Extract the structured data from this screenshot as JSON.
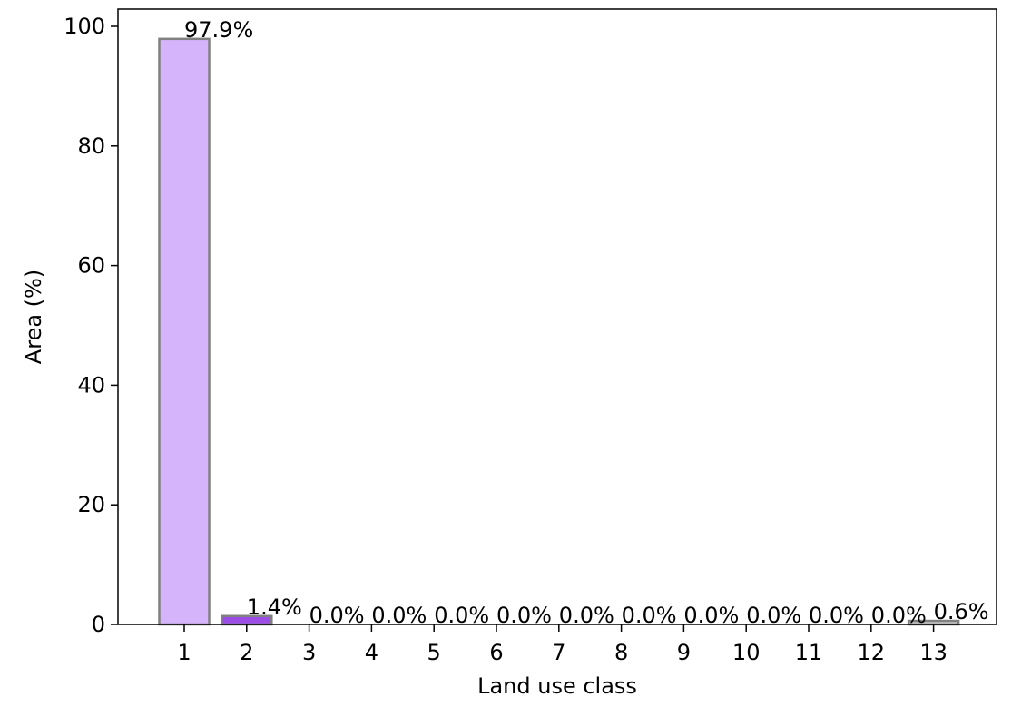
{
  "chart_data": {
    "type": "bar",
    "xlabel": "Land use class",
    "ylabel": "Area (%)",
    "categories": [
      "1",
      "2",
      "3",
      "4",
      "5",
      "6",
      "7",
      "8",
      "9",
      "10",
      "11",
      "12",
      "13"
    ],
    "values": [
      97.9,
      1.4,
      0.0,
      0.0,
      0.0,
      0.0,
      0.0,
      0.0,
      0.0,
      0.0,
      0.0,
      0.0,
      0.6
    ],
    "value_labels": [
      "97.9%",
      "1.4%",
      "0.0%",
      "0.0%",
      "0.0%",
      "0.0%",
      "0.0%",
      "0.0%",
      "0.0%",
      "0.0%",
      "0.0%",
      "0.0%",
      "0.6%"
    ],
    "bar_colors": [
      "#d6b4fc",
      "#9b4de6",
      "#d6b4fc",
      "#d6b4fc",
      "#d6b4fc",
      "#d6b4fc",
      "#d6b4fc",
      "#d6b4fc",
      "#d6b4fc",
      "#d6b4fc",
      "#d6b4fc",
      "#d6b4fc",
      "#c8c8c8"
    ],
    "bar_edge_color": "#808080",
    "ylim": [
      0,
      100
    ],
    "yticks": [
      0,
      20,
      40,
      60,
      80,
      100
    ],
    "grid": false,
    "legend": "none"
  }
}
